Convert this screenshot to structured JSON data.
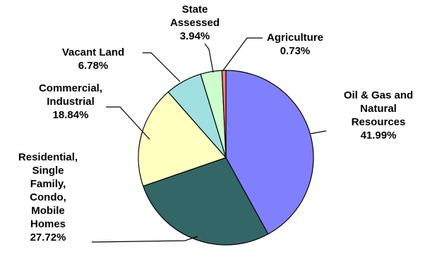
{
  "chart_data": {
    "type": "pie",
    "title": "",
    "series": [
      {
        "values": [
          41.99,
          27.72,
          18.84,
          6.78,
          3.94,
          0.73
        ],
        "categories": [
          "Oil & Gas and Natural Resources",
          "Residential, Single Family, Condo, Mobile Homes",
          "Commercial, Industrial",
          "Vacant Land",
          "State Assessed",
          "Agriculture"
        ]
      }
    ],
    "slices": [
      {
        "label": "Oil & Gas and Natural Resources",
        "label_lines": [
          "Oil & Gas and",
          "Natural",
          "Resources"
        ],
        "value": 41.99,
        "value_text": "41.99%",
        "color": "#8080ff"
      },
      {
        "label": "Residential, Single Family, Condo, Mobile Homes",
        "label_lines": [
          "Residential,",
          "Single",
          "Family,",
          "Condo,",
          "Mobile",
          "Homes"
        ],
        "value": 27.72,
        "value_text": "27.72%",
        "color": "#336666"
      },
      {
        "label": "Commercial, Industrial",
        "label_lines": [
          "Commercial,",
          "Industrial"
        ],
        "value": 18.84,
        "value_text": "18.84%",
        "color": "#ffffc0"
      },
      {
        "label": "Vacant Land",
        "label_lines": [
          "Vacant Land"
        ],
        "value": 6.78,
        "value_text": "6.78%",
        "color": "#a0e0e0"
      },
      {
        "label": "State Assessed",
        "label_lines": [
          "State",
          "Assessed"
        ],
        "value": 3.94,
        "value_text": "3.94%",
        "color": "#ccffcc"
      },
      {
        "label": "Agriculture",
        "label_lines": [
          "Agriculture"
        ],
        "value": 0.73,
        "value_text": "0.73%",
        "color": "#ff8080"
      }
    ]
  }
}
